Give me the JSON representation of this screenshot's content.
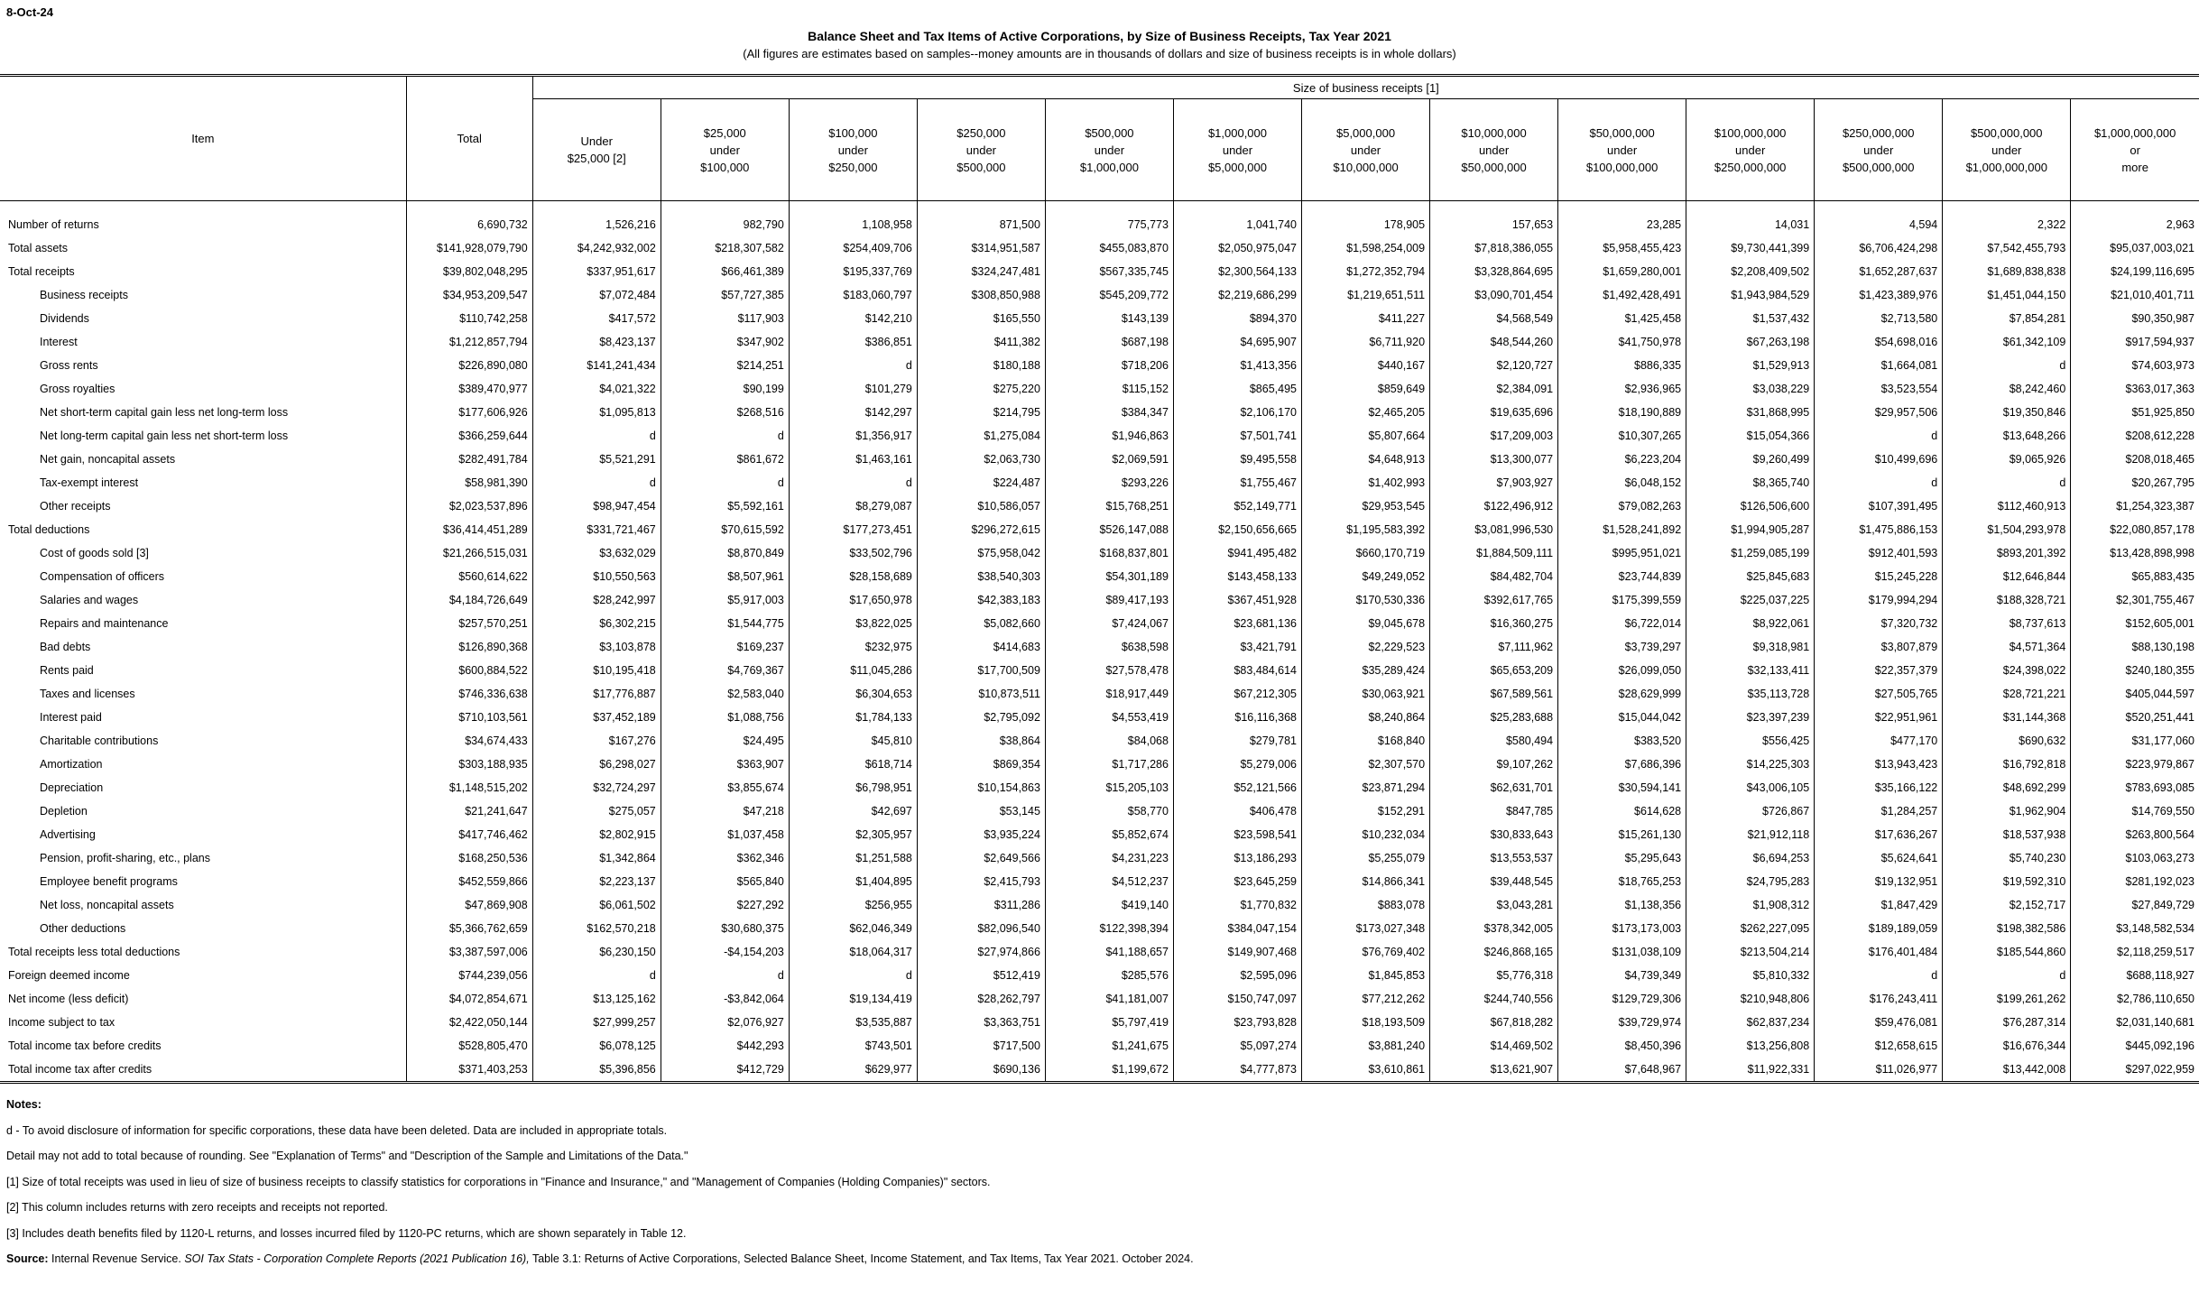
{
  "stamp": "8-Oct-24",
  "title": "Balance Sheet and Tax Items of Active Corporations, by Size of Business Receipts, Tax Year 2021",
  "subtitle": "(All figures are estimates based on samples--money amounts are in thousands of dollars and size of business receipts is in whole dollars)",
  "table": {
    "item_header": "Item",
    "total_header": "Total",
    "band_header": "Size of business receipts [1]",
    "size_columns": [
      "Under\n$25,000 [2]",
      "$25,000\nunder\n$100,000",
      "$100,000\nunder\n$250,000",
      "$250,000\nunder\n$500,000",
      "$500,000\nunder\n$1,000,000",
      "$1,000,000\nunder\n$5,000,000",
      "$5,000,000\nunder\n$10,000,000",
      "$10,000,000\nunder\n$50,000,000",
      "$50,000,000\nunder\n$100,000,000",
      "$100,000,000\nunder\n$250,000,000",
      "$250,000,000\nunder\n$500,000,000",
      "$500,000,000\nunder\n$1,000,000,000",
      "$1,000,000,000\nor\nmore"
    ],
    "rows": [
      {
        "label": "Number of returns",
        "indent": 0,
        "values": [
          "6,690,732",
          "1,526,216",
          "982,790",
          "1,108,958",
          "871,500",
          "775,773",
          "1,041,740",
          "178,905",
          "157,653",
          "23,285",
          "14,031",
          "4,594",
          "2,322",
          "2,963"
        ]
      },
      {
        "label": "Total assets",
        "indent": 0,
        "values": [
          "$141,928,079,790",
          "$4,242,932,002",
          "$218,307,582",
          "$254,409,706",
          "$314,951,587",
          "$455,083,870",
          "$2,050,975,047",
          "$1,598,254,009",
          "$7,818,386,055",
          "$5,958,455,423",
          "$9,730,441,399",
          "$6,706,424,298",
          "$7,542,455,793",
          "$95,037,003,021"
        ]
      },
      {
        "label": "Total receipts",
        "indent": 0,
        "values": [
          "$39,802,048,295",
          "$337,951,617",
          "$66,461,389",
          "$195,337,769",
          "$324,247,481",
          "$567,335,745",
          "$2,300,564,133",
          "$1,272,352,794",
          "$3,328,864,695",
          "$1,659,280,001",
          "$2,208,409,502",
          "$1,652,287,637",
          "$1,689,838,838",
          "$24,199,116,695"
        ]
      },
      {
        "label": "Business receipts",
        "indent": 1,
        "values": [
          "$34,953,209,547",
          "$7,072,484",
          "$57,727,385",
          "$183,060,797",
          "$308,850,988",
          "$545,209,772",
          "$2,219,686,299",
          "$1,219,651,511",
          "$3,090,701,454",
          "$1,492,428,491",
          "$1,943,984,529",
          "$1,423,389,976",
          "$1,451,044,150",
          "$21,010,401,711"
        ]
      },
      {
        "label": "Dividends",
        "indent": 1,
        "values": [
          "$110,742,258",
          "$417,572",
          "$117,903",
          "$142,210",
          "$165,550",
          "$143,139",
          "$894,370",
          "$411,227",
          "$4,568,549",
          "$1,425,458",
          "$1,537,432",
          "$2,713,580",
          "$7,854,281",
          "$90,350,987"
        ]
      },
      {
        "label": "Interest",
        "indent": 1,
        "values": [
          "$1,212,857,794",
          "$8,423,137",
          "$347,902",
          "$386,851",
          "$411,382",
          "$687,198",
          "$4,695,907",
          "$6,711,920",
          "$48,544,260",
          "$41,750,978",
          "$67,263,198",
          "$54,698,016",
          "$61,342,109",
          "$917,594,937"
        ]
      },
      {
        "label": "Gross rents",
        "indent": 1,
        "values": [
          "$226,890,080",
          "$141,241,434",
          "$214,251",
          "d",
          "$180,188",
          "$718,206",
          "$1,413,356",
          "$440,167",
          "$2,120,727",
          "$886,335",
          "$1,529,913",
          "$1,664,081",
          "d",
          "$74,603,973"
        ]
      },
      {
        "label": "Gross royalties",
        "indent": 1,
        "values": [
          "$389,470,977",
          "$4,021,322",
          "$90,199",
          "$101,279",
          "$275,220",
          "$115,152",
          "$865,495",
          "$859,649",
          "$2,384,091",
          "$2,936,965",
          "$3,038,229",
          "$3,523,554",
          "$8,242,460",
          "$363,017,363"
        ]
      },
      {
        "label": "Net short-term capital gain less net long-term loss",
        "indent": 1,
        "values": [
          "$177,606,926",
          "$1,095,813",
          "$268,516",
          "$142,297",
          "$214,795",
          "$384,347",
          "$2,106,170",
          "$2,465,205",
          "$19,635,696",
          "$18,190,889",
          "$31,868,995",
          "$29,957,506",
          "$19,350,846",
          "$51,925,850"
        ]
      },
      {
        "label": "Net long-term capital gain less net short-term loss",
        "indent": 1,
        "values": [
          "$366,259,644",
          "d",
          "d",
          "$1,356,917",
          "$1,275,084",
          "$1,946,863",
          "$7,501,741",
          "$5,807,664",
          "$17,209,003",
          "$10,307,265",
          "$15,054,366",
          "d",
          "$13,648,266",
          "$208,612,228"
        ]
      },
      {
        "label": "Net gain, noncapital assets",
        "indent": 1,
        "values": [
          "$282,491,784",
          "$5,521,291",
          "$861,672",
          "$1,463,161",
          "$2,063,730",
          "$2,069,591",
          "$9,495,558",
          "$4,648,913",
          "$13,300,077",
          "$6,223,204",
          "$9,260,499",
          "$10,499,696",
          "$9,065,926",
          "$208,018,465"
        ]
      },
      {
        "label": "Tax-exempt interest",
        "indent": 1,
        "values": [
          "$58,981,390",
          "d",
          "d",
          "d",
          "$224,487",
          "$293,226",
          "$1,755,467",
          "$1,402,993",
          "$7,903,927",
          "$6,048,152",
          "$8,365,740",
          "d",
          "d",
          "$20,267,795"
        ]
      },
      {
        "label": "Other receipts",
        "indent": 1,
        "values": [
          "$2,023,537,896",
          "$98,947,454",
          "$5,592,161",
          "$8,279,087",
          "$10,586,057",
          "$15,768,251",
          "$52,149,771",
          "$29,953,545",
          "$122,496,912",
          "$79,082,263",
          "$126,506,600",
          "$107,391,495",
          "$112,460,913",
          "$1,254,323,387"
        ]
      },
      {
        "label": "Total deductions",
        "indent": 0,
        "values": [
          "$36,414,451,289",
          "$331,721,467",
          "$70,615,592",
          "$177,273,451",
          "$296,272,615",
          "$526,147,088",
          "$2,150,656,665",
          "$1,195,583,392",
          "$3,081,996,530",
          "$1,528,241,892",
          "$1,994,905,287",
          "$1,475,886,153",
          "$1,504,293,978",
          "$22,080,857,178"
        ]
      },
      {
        "label": "Cost of goods sold [3]",
        "indent": 1,
        "values": [
          "$21,266,515,031",
          "$3,632,029",
          "$8,870,849",
          "$33,502,796",
          "$75,958,042",
          "$168,837,801",
          "$941,495,482",
          "$660,170,719",
          "$1,884,509,111",
          "$995,951,021",
          "$1,259,085,199",
          "$912,401,593",
          "$893,201,392",
          "$13,428,898,998"
        ]
      },
      {
        "label": "Compensation of officers",
        "indent": 1,
        "values": [
          "$560,614,622",
          "$10,550,563",
          "$8,507,961",
          "$28,158,689",
          "$38,540,303",
          "$54,301,189",
          "$143,458,133",
          "$49,249,052",
          "$84,482,704",
          "$23,744,839",
          "$25,845,683",
          "$15,245,228",
          "$12,646,844",
          "$65,883,435"
        ]
      },
      {
        "label": "Salaries and wages",
        "indent": 1,
        "values": [
          "$4,184,726,649",
          "$28,242,997",
          "$5,917,003",
          "$17,650,978",
          "$42,383,183",
          "$89,417,193",
          "$367,451,928",
          "$170,530,336",
          "$392,617,765",
          "$175,399,559",
          "$225,037,225",
          "$179,994,294",
          "$188,328,721",
          "$2,301,755,467"
        ]
      },
      {
        "label": "Repairs and maintenance",
        "indent": 1,
        "values": [
          "$257,570,251",
          "$6,302,215",
          "$1,544,775",
          "$3,822,025",
          "$5,082,660",
          "$7,424,067",
          "$23,681,136",
          "$9,045,678",
          "$16,360,275",
          "$6,722,014",
          "$8,922,061",
          "$7,320,732",
          "$8,737,613",
          "$152,605,001"
        ]
      },
      {
        "label": "Bad debts",
        "indent": 1,
        "values": [
          "$126,890,368",
          "$3,103,878",
          "$169,237",
          "$232,975",
          "$414,683",
          "$638,598",
          "$3,421,791",
          "$2,229,523",
          "$7,111,962",
          "$3,739,297",
          "$9,318,981",
          "$3,807,879",
          "$4,571,364",
          "$88,130,198"
        ]
      },
      {
        "label": "Rents paid",
        "indent": 1,
        "values": [
          "$600,884,522",
          "$10,195,418",
          "$4,769,367",
          "$11,045,286",
          "$17,700,509",
          "$27,578,478",
          "$83,484,614",
          "$35,289,424",
          "$65,653,209",
          "$26,099,050",
          "$32,133,411",
          "$22,357,379",
          "$24,398,022",
          "$240,180,355"
        ]
      },
      {
        "label": "Taxes and licenses",
        "indent": 1,
        "values": [
          "$746,336,638",
          "$17,776,887",
          "$2,583,040",
          "$6,304,653",
          "$10,873,511",
          "$18,917,449",
          "$67,212,305",
          "$30,063,921",
          "$67,589,561",
          "$28,629,999",
          "$35,113,728",
          "$27,505,765",
          "$28,721,221",
          "$405,044,597"
        ]
      },
      {
        "label": "Interest paid",
        "indent": 1,
        "values": [
          "$710,103,561",
          "$37,452,189",
          "$1,088,756",
          "$1,784,133",
          "$2,795,092",
          "$4,553,419",
          "$16,116,368",
          "$8,240,864",
          "$25,283,688",
          "$15,044,042",
          "$23,397,239",
          "$22,951,961",
          "$31,144,368",
          "$520,251,441"
        ]
      },
      {
        "label": "Charitable contributions",
        "indent": 1,
        "values": [
          "$34,674,433",
          "$167,276",
          "$24,495",
          "$45,810",
          "$38,864",
          "$84,068",
          "$279,781",
          "$168,840",
          "$580,494",
          "$383,520",
          "$556,425",
          "$477,170",
          "$690,632",
          "$31,177,060"
        ]
      },
      {
        "label": "Amortization",
        "indent": 1,
        "values": [
          "$303,188,935",
          "$6,298,027",
          "$363,907",
          "$618,714",
          "$869,354",
          "$1,717,286",
          "$5,279,006",
          "$2,307,570",
          "$9,107,262",
          "$7,686,396",
          "$14,225,303",
          "$13,943,423",
          "$16,792,818",
          "$223,979,867"
        ]
      },
      {
        "label": "Depreciation",
        "indent": 1,
        "values": [
          "$1,148,515,202",
          "$32,724,297",
          "$3,855,674",
          "$6,798,951",
          "$10,154,863",
          "$15,205,103",
          "$52,121,566",
          "$23,871,294",
          "$62,631,701",
          "$30,594,141",
          "$43,006,105",
          "$35,166,122",
          "$48,692,299",
          "$783,693,085"
        ]
      },
      {
        "label": "Depletion",
        "indent": 1,
        "values": [
          "$21,241,647",
          "$275,057",
          "$47,218",
          "$42,697",
          "$53,145",
          "$58,770",
          "$406,478",
          "$152,291",
          "$847,785",
          "$614,628",
          "$726,867",
          "$1,284,257",
          "$1,962,904",
          "$14,769,550"
        ]
      },
      {
        "label": "Advertising",
        "indent": 1,
        "values": [
          "$417,746,462",
          "$2,802,915",
          "$1,037,458",
          "$2,305,957",
          "$3,935,224",
          "$5,852,674",
          "$23,598,541",
          "$10,232,034",
          "$30,833,643",
          "$15,261,130",
          "$21,912,118",
          "$17,636,267",
          "$18,537,938",
          "$263,800,564"
        ]
      },
      {
        "label": "Pension, profit-sharing, etc., plans",
        "indent": 1,
        "values": [
          "$168,250,536",
          "$1,342,864",
          "$362,346",
          "$1,251,588",
          "$2,649,566",
          "$4,231,223",
          "$13,186,293",
          "$5,255,079",
          "$13,553,537",
          "$5,295,643",
          "$6,694,253",
          "$5,624,641",
          "$5,740,230",
          "$103,063,273"
        ]
      },
      {
        "label": "Employee benefit programs",
        "indent": 1,
        "values": [
          "$452,559,866",
          "$2,223,137",
          "$565,840",
          "$1,404,895",
          "$2,415,793",
          "$4,512,237",
          "$23,645,259",
          "$14,866,341",
          "$39,448,545",
          "$18,765,253",
          "$24,795,283",
          "$19,132,951",
          "$19,592,310",
          "$281,192,023"
        ]
      },
      {
        "label": "Net loss, noncapital assets",
        "indent": 1,
        "values": [
          "$47,869,908",
          "$6,061,502",
          "$227,292",
          "$256,955",
          "$311,286",
          "$419,140",
          "$1,770,832",
          "$883,078",
          "$3,043,281",
          "$1,138,356",
          "$1,908,312",
          "$1,847,429",
          "$2,152,717",
          "$27,849,729"
        ]
      },
      {
        "label": "Other deductions",
        "indent": 1,
        "values": [
          "$5,366,762,659",
          "$162,570,218",
          "$30,680,375",
          "$62,046,349",
          "$82,096,540",
          "$122,398,394",
          "$384,047,154",
          "$173,027,348",
          "$378,342,005",
          "$173,173,003",
          "$262,227,095",
          "$189,189,059",
          "$198,382,586",
          "$3,148,582,534"
        ]
      },
      {
        "label": "Total receipts less total deductions",
        "indent": 0,
        "values": [
          "$3,387,597,006",
          "$6,230,150",
          "-$4,154,203",
          "$18,064,317",
          "$27,974,866",
          "$41,188,657",
          "$149,907,468",
          "$76,769,402",
          "$246,868,165",
          "$131,038,109",
          "$213,504,214",
          "$176,401,484",
          "$185,544,860",
          "$2,118,259,517"
        ]
      },
      {
        "label": "Foreign deemed income",
        "indent": 0,
        "values": [
          "$744,239,056",
          "d",
          "d",
          "d",
          "$512,419",
          "$285,576",
          "$2,595,096",
          "$1,845,853",
          "$5,776,318",
          "$4,739,349",
          "$5,810,332",
          "d",
          "d",
          "$688,118,927"
        ]
      },
      {
        "label": "Net income (less deficit)",
        "indent": 0,
        "values": [
          "$4,072,854,671",
          "$13,125,162",
          "-$3,842,064",
          "$19,134,419",
          "$28,262,797",
          "$41,181,007",
          "$150,747,097",
          "$77,212,262",
          "$244,740,556",
          "$129,729,306",
          "$210,948,806",
          "$176,243,411",
          "$199,261,262",
          "$2,786,110,650"
        ]
      },
      {
        "label": "Income subject to tax",
        "indent": 0,
        "values": [
          "$2,422,050,144",
          "$27,999,257",
          "$2,076,927",
          "$3,535,887",
          "$3,363,751",
          "$5,797,419",
          "$23,793,828",
          "$18,193,509",
          "$67,818,282",
          "$39,729,974",
          "$62,837,234",
          "$59,476,081",
          "$76,287,314",
          "$2,031,140,681"
        ]
      },
      {
        "label": "Total income tax before credits",
        "indent": 0,
        "values": [
          "$528,805,470",
          "$6,078,125",
          "$442,293",
          "$743,501",
          "$717,500",
          "$1,241,675",
          "$5,097,274",
          "$3,881,240",
          "$14,469,502",
          "$8,450,396",
          "$13,256,808",
          "$12,658,615",
          "$16,676,344",
          "$445,092,196"
        ]
      },
      {
        "label": "Total income tax after credits",
        "indent": 0,
        "values": [
          "$371,403,253",
          "$5,396,856",
          "$412,729",
          "$629,977",
          "$690,136",
          "$1,199,672",
          "$4,777,873",
          "$3,610,861",
          "$13,621,907",
          "$7,648,967",
          "$11,922,331",
          "$11,026,977",
          "$13,442,008",
          "$297,022,959"
        ]
      }
    ]
  },
  "notes": {
    "heading": "Notes:",
    "lines": [
      "d - To avoid disclosure of information for specific corporations, these data have been deleted.  Data are included in appropriate totals.",
      "Detail may not add to total because of rounding. See \"Explanation of Terms\" and \"Description of the Sample and Limitations of the Data.\"",
      "[1]  Size of total receipts was used in lieu of size of business receipts to classify statistics for corporations in \"Finance and Insurance,\" and \"Management of Companies (Holding Companies)\" sectors.",
      "[2]  This column includes returns with zero receipts and receipts not reported.",
      "[3]  Includes death benefits filed by 1120-L returns, and losses incurred filed by 1120-PC returns, which are shown separately in Table 12."
    ],
    "source_label": "Source:",
    "source_normal": " Internal Revenue Service. ",
    "source_italic": "SOI Tax Stats - Corporation Complete Reports (2021 Publication 16),",
    "source_tail": " Table 3.1: Returns of Active Corporations, Selected Balance Sheet, Income Statement, and Tax Items, Tax Year 2021. October 2024."
  }
}
